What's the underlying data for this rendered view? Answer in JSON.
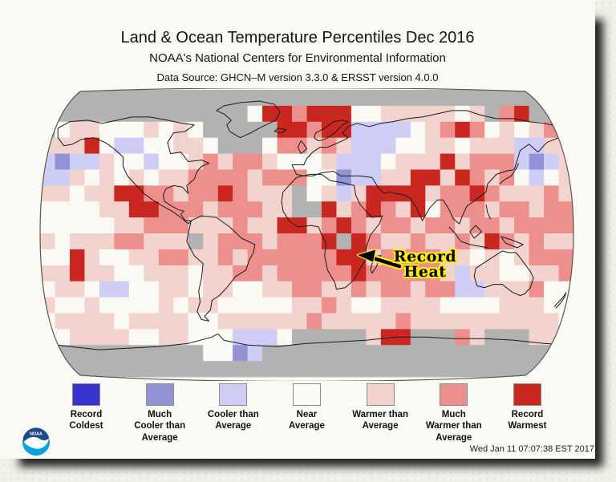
{
  "header": {
    "title": "Land & Ocean Temperature Percentiles Dec 2016",
    "subtitle": "NOAA's National Centers for Environmental Information",
    "datasource": "Data Source: GHCN–M version 3.3.0 & ERSST version 4.0.0"
  },
  "annotation": {
    "label": "Record\nHeat"
  },
  "timestamp": "Wed Jan 11 07:07:38 EST 2017",
  "logo": {
    "text": "NOAA"
  },
  "legend": {
    "items": [
      {
        "label": "Record\nColdest",
        "color": "#3832cf",
        "key": "B"
      },
      {
        "label": "Much\nCooler than\nAverage",
        "color": "#9193d6",
        "key": "C"
      },
      {
        "label": "Cooler than\nAverage",
        "color": "#cdcdf5",
        "key": "c"
      },
      {
        "label": "Near\nAverage",
        "color": "#faf9f3",
        "key": "W"
      },
      {
        "label": "Warmer than\nAverage",
        "color": "#f2d3cd",
        "key": "w"
      },
      {
        "label": "Much\nWarmer than\nAverage",
        "color": "#ed8f8c",
        "key": "M"
      },
      {
        "label": "Record\nWarmest",
        "color": "#c9271f",
        "key": "R"
      }
    ]
  },
  "map": {
    "projection": "robinson",
    "palette": {
      "G": "#b2b2b2",
      "W": "#faf9f3",
      "w": "#f2d3cd",
      "M": "#ed8f8c",
      "R": "#c9271f",
      "c": "#cdcdf5",
      "C": "#9193d6",
      "B": "#3832cf"
    },
    "grid": [
      "GGGGGGGGGGGGGGGGGGGGGGGGGGGGGGGGGGGG",
      "GGGGGGGGGGGGGGWRRMRRRWWwwwwwWwGMRGGG",
      "GWwwWWWwWwWGGGGGRRMRRccccWwMRMWwWwMG",
      "wwwRWccWWwwWGGGWMMwMwcccWWwwWwwwccww",
      "cCccwWWcWWwMwMMwWWWwcccWwwwRwMMMcCcw",
      "ccwWwWwWwwMMMMwMMMWWCccwwRRwRMwMWcWw",
      "wwWwwRRMMwMMRMwwwGWwcwRRRRwMMRMwwwMw",
      "WWWWwwRRMMMwMMMwwGGRwMRMwRWMMMwMMwMM",
      "WWWWWwwMMMwwwMwwRRwMRMwMMwMMwMMwMMMM",
      "wWwwwMMwwwGwMMMwMMMRGRMwwMwwMwRMwMww",
      "WWRwWWwwMMwwMwMMMMMMRRwMMMMwwWwWwMMM",
      "wwRwwWWwwwWwwMMwMMMMMRMMMMMwcwwWWwwM",
      "WwwWccWWwwWwwWWwwMMwwMwMMwMMccwwwMWW",
      "wWWwWWWWwWwwWWWWWwwMwWWwwwwWWWWwwwWW",
      "WwwwwWwwwwWWwwwwwwMwwwwwMwwwwwwwwwwW",
      "WWwwwwWWwwWWWcccWGGGGGwRRGGGMwGGGwwW",
      "GGGGGGGGGGGWWCcGGGGGGGGGGGGGGGGGGGGG",
      "GGGGGGGGGGGGGGGGGGGGGGGGGGGGGGGGGGGG"
    ],
    "coastlines": [
      [
        [
          -168,
          66
        ],
        [
          -160,
          70
        ],
        [
          -148,
          71
        ],
        [
          -138,
          69
        ],
        [
          -128,
          71
        ],
        [
          -118,
          73
        ],
        [
          -106,
          73
        ],
        [
          -94,
          71
        ],
        [
          -84,
          69
        ],
        [
          -76,
          68
        ],
        [
          -82,
          64
        ],
        [
          -90,
          63
        ],
        [
          -94,
          57
        ],
        [
          -92,
          50
        ],
        [
          -85,
          51
        ],
        [
          -80,
          45
        ],
        [
          -71,
          46
        ],
        [
          -66,
          44
        ],
        [
          -71,
          42
        ],
        [
          -74,
          39
        ],
        [
          -76,
          34
        ],
        [
          -81,
          30
        ],
        [
          -80,
          25
        ],
        [
          -84,
          29
        ],
        [
          -90,
          30
        ],
        [
          -95,
          28
        ],
        [
          -97,
          24
        ],
        [
          -96,
          20
        ],
        [
          -91,
          17
        ],
        [
          -87,
          15
        ],
        [
          -83,
          14
        ],
        [
          -85,
          12
        ],
        [
          -82,
          8
        ],
        [
          -78,
          8
        ],
        [
          -80,
          6
        ],
        [
          -85,
          10
        ],
        [
          -91,
          14
        ],
        [
          -97,
          17
        ],
        [
          -104,
          21
        ],
        [
          -110,
          25
        ],
        [
          -116,
          31
        ],
        [
          -121,
          36
        ],
        [
          -124,
          42
        ],
        [
          -124,
          48
        ],
        [
          -130,
          53
        ],
        [
          -136,
          57
        ],
        [
          -144,
          60
        ],
        [
          -152,
          59
        ],
        [
          -158,
          56
        ],
        [
          -164,
          55
        ],
        [
          -168,
          60
        ],
        [
          -168,
          66
        ]
      ],
      [
        [
          -45,
          60
        ],
        [
          -52,
          64
        ],
        [
          -54,
          68
        ],
        [
          -51,
          71
        ],
        [
          -56,
          75
        ],
        [
          -61,
          77
        ],
        [
          -56,
          80
        ],
        [
          -45,
          82
        ],
        [
          -32,
          83
        ],
        [
          -22,
          81
        ],
        [
          -18,
          76
        ],
        [
          -21,
          71
        ],
        [
          -30,
          67
        ],
        [
          -38,
          63
        ],
        [
          -45,
          60
        ]
      ],
      [
        [
          -78,
          8
        ],
        [
          -71,
          11
        ],
        [
          -61,
          10
        ],
        [
          -52,
          4
        ],
        [
          -44,
          -3
        ],
        [
          -35,
          -7
        ],
        [
          -36,
          -12
        ],
        [
          -39,
          -17
        ],
        [
          -41,
          -23
        ],
        [
          -48,
          -27
        ],
        [
          -54,
          -34
        ],
        [
          -59,
          -39
        ],
        [
          -64,
          -42
        ],
        [
          -65,
          -48
        ],
        [
          -69,
          -52
        ],
        [
          -66,
          -55
        ],
        [
          -71,
          -54
        ],
        [
          -74,
          -49
        ],
        [
          -72,
          -43
        ],
        [
          -73,
          -36
        ],
        [
          -71,
          -28
        ],
        [
          -70,
          -19
        ],
        [
          -76,
          -14
        ],
        [
          -81,
          -5
        ],
        [
          -80,
          0
        ],
        [
          -78,
          8
        ]
      ],
      [
        [
          -7,
          35
        ],
        [
          -11,
          31
        ],
        [
          -16,
          26
        ],
        [
          -17,
          20
        ],
        [
          -16,
          14
        ],
        [
          -12,
          8
        ],
        [
          -6,
          4
        ],
        [
          3,
          5
        ],
        [
          8,
          4
        ],
        [
          10,
          -1
        ],
        [
          13,
          -6
        ],
        [
          12,
          -14
        ],
        [
          14,
          -23
        ],
        [
          19,
          -31
        ],
        [
          20,
          -35
        ],
        [
          26,
          -34
        ],
        [
          32,
          -29
        ],
        [
          36,
          -22
        ],
        [
          40,
          -16
        ],
        [
          40,
          -9
        ],
        [
          43,
          -1
        ],
        [
          49,
          6
        ],
        [
          51,
          11
        ],
        [
          44,
          10
        ],
        [
          40,
          14
        ],
        [
          36,
          18
        ],
        [
          33,
          24
        ],
        [
          32,
          30
        ],
        [
          23,
          32
        ],
        [
          16,
          33
        ],
        [
          10,
          37
        ],
        [
          2,
          37
        ],
        [
          -7,
          35
        ]
      ],
      [
        [
          44,
          -25
        ],
        [
          47,
          -21
        ],
        [
          50,
          -14
        ],
        [
          48,
          -14
        ],
        [
          44,
          -19
        ],
        [
          43,
          -23
        ],
        [
          44,
          -25
        ]
      ],
      [
        [
          -10,
          43
        ],
        [
          -2,
          43
        ],
        [
          0,
          47
        ],
        [
          4,
          51
        ],
        [
          9,
          54
        ],
        [
          14,
          54
        ],
        [
          19,
          56
        ],
        [
          24,
          58
        ],
        [
          28,
          60
        ],
        [
          24,
          63
        ],
        [
          28,
          67
        ],
        [
          34,
          69
        ],
        [
          42,
          67
        ],
        [
          50,
          69
        ],
        [
          58,
          70
        ],
        [
          68,
          72
        ],
        [
          78,
          73
        ],
        [
          88,
          75
        ],
        [
          98,
          77
        ],
        [
          108,
          77
        ],
        [
          118,
          74
        ],
        [
          128,
          72
        ],
        [
          140,
          72
        ],
        [
          150,
          70
        ],
        [
          160,
          69
        ],
        [
          170,
          67
        ],
        [
          179,
          65
        ],
        [
          179,
          62
        ],
        [
          170,
          60
        ],
        [
          162,
          57
        ],
        [
          156,
          51
        ],
        [
          150,
          56
        ],
        [
          144,
          52
        ],
        [
          142,
          46
        ],
        [
          140,
          40
        ],
        [
          134,
          39
        ],
        [
          128,
          37
        ],
        [
          122,
          31
        ],
        [
          121,
          26
        ],
        [
          114,
          21
        ],
        [
          108,
          17
        ],
        [
          105,
          11
        ],
        [
          103,
          6
        ],
        [
          99,
          9
        ],
        [
          96,
          15
        ],
        [
          92,
          21
        ],
        [
          88,
          21
        ],
        [
          83,
          16
        ],
        [
          78,
          8
        ],
        [
          74,
          16
        ],
        [
          70,
          22
        ],
        [
          66,
          24
        ],
        [
          60,
          25
        ],
        [
          56,
          26
        ],
        [
          52,
          25
        ],
        [
          48,
          29
        ],
        [
          44,
          35
        ],
        [
          36,
          36
        ],
        [
          33,
          36
        ],
        [
          28,
          36
        ],
        [
          23,
          36
        ],
        [
          18,
          39
        ],
        [
          10,
          38
        ],
        [
          4,
          36
        ],
        [
          -2,
          36
        ],
        [
          -7,
          37
        ],
        [
          -10,
          43
        ]
      ],
      [
        [
          8,
          58
        ],
        [
          5,
          60
        ],
        [
          6,
          63
        ],
        [
          12,
          66
        ],
        [
          18,
          70
        ],
        [
          24,
          71
        ],
        [
          28,
          70
        ],
        [
          24,
          68
        ],
        [
          20,
          64
        ],
        [
          16,
          61
        ],
        [
          12,
          59
        ],
        [
          8,
          58
        ]
      ],
      [
        [
          -4,
          50
        ],
        [
          -6,
          54
        ],
        [
          -4,
          58
        ],
        [
          -2,
          56
        ],
        [
          0,
          53
        ],
        [
          -4,
          50
        ]
      ],
      [
        [
          -22,
          64
        ],
        [
          -19,
          66
        ],
        [
          -14,
          65
        ],
        [
          -17,
          63
        ],
        [
          -22,
          64
        ]
      ],
      [
        [
          130,
          31
        ],
        [
          134,
          34
        ],
        [
          138,
          36
        ],
        [
          141,
          40
        ],
        [
          143,
          44
        ]
      ],
      [
        [
          110,
          1
        ],
        [
          114,
          5
        ],
        [
          118,
          1
        ],
        [
          113,
          -3
        ],
        [
          110,
          1
        ]
      ],
      [
        [
          96,
          4
        ],
        [
          100,
          0
        ],
        [
          104,
          -5
        ],
        [
          110,
          -7
        ],
        [
          116,
          -8
        ],
        [
          122,
          -9
        ]
      ],
      [
        [
          131,
          -2
        ],
        [
          138,
          -4
        ],
        [
          146,
          -7
        ],
        [
          142,
          -9
        ],
        [
          134,
          -6
        ],
        [
          131,
          -2
        ]
      ],
      [
        [
          121,
          18
        ],
        [
          122,
          13
        ],
        [
          124,
          9
        ]
      ],
      [
        [
          114,
          -22
        ],
        [
          113,
          -27
        ],
        [
          115,
          -33
        ],
        [
          120,
          -34
        ],
        [
          126,
          -32
        ],
        [
          132,
          -32
        ],
        [
          136,
          -35
        ],
        [
          139,
          -37
        ],
        [
          144,
          -39
        ],
        [
          147,
          -38
        ],
        [
          151,
          -34
        ],
        [
          153,
          -28
        ],
        [
          151,
          -24
        ],
        [
          147,
          -19
        ],
        [
          143,
          -14
        ],
        [
          141,
          -12
        ],
        [
          136,
          -12
        ],
        [
          132,
          -11
        ],
        [
          127,
          -14
        ],
        [
          122,
          -17
        ],
        [
          117,
          -20
        ],
        [
          114,
          -22
        ]
      ],
      [
        [
          167,
          -46
        ],
        [
          170,
          -43
        ],
        [
          173,
          -40
        ],
        [
          175,
          -37
        ],
        [
          174,
          -40
        ],
        [
          171,
          -44
        ],
        [
          168,
          -47
        ]
      ],
      [
        [
          -178,
          -69
        ],
        [
          -160,
          -71
        ],
        [
          -140,
          -73
        ],
        [
          -120,
          -72
        ],
        [
          -100,
          -71
        ],
        [
          -80,
          -69
        ],
        [
          -64,
          -65
        ],
        [
          -60,
          -63
        ],
        [
          -56,
          -67
        ],
        [
          -40,
          -70
        ],
        [
          -20,
          -71
        ],
        [
          0,
          -69
        ],
        [
          20,
          -68
        ],
        [
          40,
          -67
        ],
        [
          60,
          -65
        ],
        [
          80,
          -65
        ],
        [
          100,
          -66
        ],
        [
          120,
          -66
        ],
        [
          140,
          -67
        ],
        [
          160,
          -69
        ],
        [
          178,
          -70
        ]
      ]
    ]
  }
}
